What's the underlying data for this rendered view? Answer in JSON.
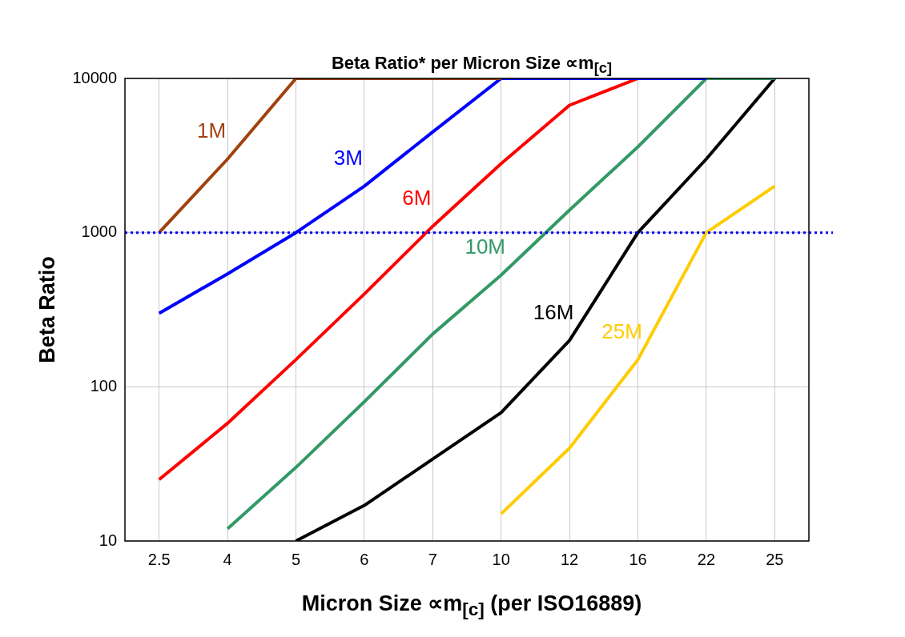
{
  "chart_data": {
    "type": "line",
    "title": "Beta Ratio* per Micron Size ∝m$_{[c]}$",
    "xlabel": "Micron Size ∝m$_{[c]}$ (per ISO16889)",
    "ylabel": "Beta Ratio",
    "categories": [
      "2.5",
      "4",
      "5",
      "6",
      "7",
      "10",
      "12",
      "16",
      "22",
      "25"
    ],
    "series": [
      {
        "color": "#a0420f",
        "values": [
          1000,
          3000,
          10000,
          10000,
          10000,
          10000,
          null,
          null,
          null,
          null
        ]
      },
      {
        "color": "#0000ff",
        "values": [
          300,
          540,
          1000,
          2000,
          4500,
          10000,
          10000,
          10000,
          10000,
          null
        ]
      },
      {
        "color": "#ff0000",
        "values": [
          25,
          58,
          150,
          400,
          1100,
          2800,
          6700,
          10000,
          null,
          null
        ]
      },
      {
        "color": "#339966",
        "values": [
          null,
          12,
          30,
          80,
          220,
          530,
          1400,
          3600,
          10000,
          10000
        ]
      },
      {
        "color": "#000000",
        "values": [
          null,
          null,
          10,
          17,
          34,
          68,
          200,
          1000,
          3000,
          10000
        ]
      },
      {
        "color": "#ffcc00",
        "values": [
          null,
          null,
          null,
          null,
          null,
          15,
          40,
          150,
          1000,
          2000
        ]
      }
    ],
    "annotations": [
      {
        "text": "1M",
        "x": "4",
        "y": 3000
      },
      {
        "text": "3M",
        "x": "6",
        "y": 2000
      },
      {
        "text": "6M",
        "x": "7",
        "y": 1100
      },
      {
        "text": "10M",
        "x": "10",
        "y": 530
      },
      {
        "text": "16M",
        "x": "12",
        "y": 200
      },
      {
        "text": "25M",
        "x": "16",
        "y": 150
      }
    ],
    "ylim": [
      10,
      10000
    ],
    "yticks": [
      10,
      100,
      1000,
      10000
    ],
    "log": "y",
    "grid": true,
    "legend": false,
    "marker": "none",
    "line_style": "solid",
    "ref_lines": [
      {
        "axis": "y",
        "value": 1000,
        "color": "#0000ff",
        "line_style": "dotted"
      }
    ]
  }
}
